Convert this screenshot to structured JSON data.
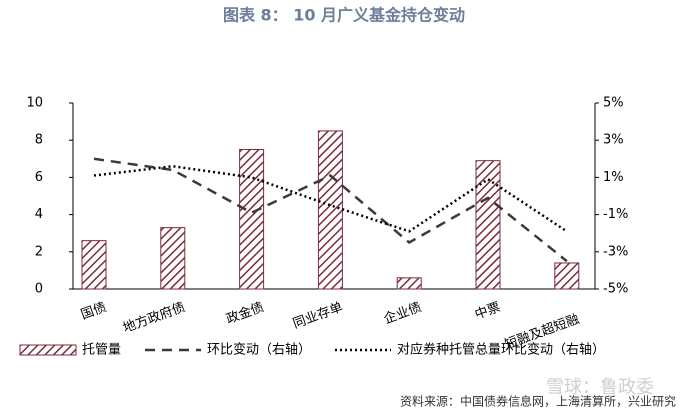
{
  "chart_data": {
    "type": "combo",
    "title": "图表 8： 10 月广义基金持仓变动",
    "categories": [
      "国债",
      "地方政府债",
      "政金债",
      "同业存单",
      "企业债",
      "中票",
      "短融及超短融"
    ],
    "series": [
      {
        "name": "托管量",
        "type": "bar",
        "color": "#7b2c3a",
        "values": [
          2.6,
          3.3,
          7.5,
          8.5,
          0.6,
          6.9,
          1.4
        ]
      },
      {
        "name": "环比变动（右轴）",
        "type": "line",
        "style": "dashed",
        "axis": "y2",
        "color": "#3a3a3a",
        "values": [
          2.0,
          1.4,
          -0.9,
          1.1,
          -2.5,
          -0.1,
          -3.5
        ]
      },
      {
        "name": "对应券种托管总量环比变动（右轴）",
        "type": "line",
        "style": "dotted",
        "axis": "y2",
        "color": "#000000",
        "values": [
          1.1,
          1.6,
          1.0,
          -0.5,
          -1.9,
          0.9,
          -1.9
        ]
      }
    ],
    "ylim": [
      0,
      10
    ],
    "yticks": [
      0,
      2,
      4,
      6,
      8,
      10
    ],
    "y2lim": [
      -5,
      5
    ],
    "y2ticks": [
      {
        "value": -5,
        "label": "-5%"
      },
      {
        "value": -3,
        "label": "-3%"
      },
      {
        "value": -1,
        "label": "-1%"
      },
      {
        "value": 1,
        "label": "1%"
      },
      {
        "value": 3,
        "label": "3%"
      },
      {
        "value": 5,
        "label": "5%"
      }
    ],
    "legend": "bottom",
    "source": "资料来源：中国债券信息网，上海清算所，兴业研究",
    "watermark": "雪球：鲁政委"
  }
}
